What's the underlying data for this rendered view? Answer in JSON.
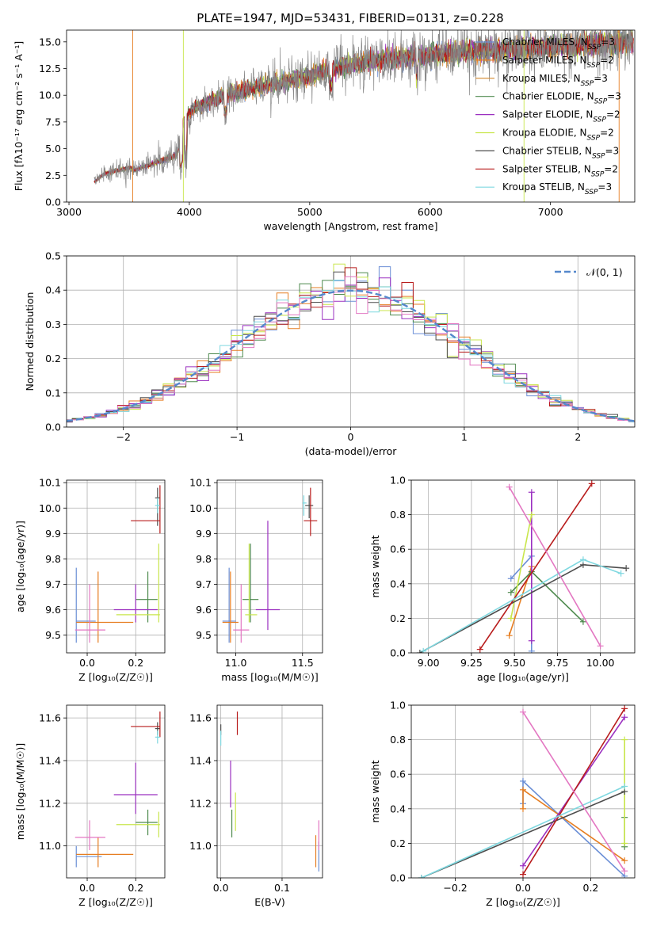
{
  "figure": {
    "title": "PLATE=1947, MJD=53431, FIBERID=0131, z=0.228"
  },
  "colors": {
    "Chabrier MILES": "#6b8fd6",
    "Salpeter MILES": "#e67e22",
    "Kroupa MILES": "#d4882c",
    "Chabrier ELODIE": "#4e8a4e",
    "Salpeter ELODIE": "#9b30c0",
    "Kroupa ELODIE": "#c8e64b",
    "Chabrier STELIB": "#4d4d4d",
    "Salpeter STELIB": "#b81c1c",
    "Kroupa STELIB": "#7fd8e0",
    "pink": "#e377c2",
    "normal": "#5588cc"
  },
  "chart_data": [
    {
      "id": "spectrum",
      "type": "line",
      "title": "PLATE=1947, MJD=53431, FIBERID=0131, z=0.228",
      "xlabel": "wavelength [Angstrom, rest frame]",
      "ylabel": "Flux [f$_\\lambda$10$^{-17}$ erg cm$^{-2}$ s$^{-1}$ A$^{-1}$]",
      "ylabel_display": "Flux [fλ10⁻¹⁷ erg cm⁻² s⁻¹ A⁻¹]",
      "xlim": [
        2980,
        7700
      ],
      "ylim": [
        0,
        16.1
      ],
      "xticks": [
        3000,
        4000,
        5000,
        6000,
        7000
      ],
      "yticks": [
        0.0,
        2.5,
        5.0,
        7.5,
        10.0,
        12.5,
        15.0
      ],
      "ytick_labels": [
        "0.0",
        "2.5",
        "5.0",
        "7.5",
        "10.0",
        "12.5",
        "15.0"
      ],
      "grid": false,
      "legend_position": "top-right",
      "spectrum_start": 3210,
      "continuum_knots": {
        "x": [
          3210,
          3300,
          3500,
          3550,
          3900,
          3950,
          4050,
          4300,
          4500,
          4700,
          5000,
          5300,
          5700,
          6000,
          6500,
          7000,
          7400,
          7550
        ],
        "y": [
          1.9,
          2.7,
          3.2,
          3.0,
          4.4,
          7.6,
          8.9,
          10.0,
          10.6,
          11.0,
          11.8,
          12.8,
          13.5,
          13.8,
          14.2,
          14.5,
          14.8,
          14.9
        ]
      },
      "series": [
        {
          "name": "Chabrier MILES",
          "label": "Chabrier MILES, N",
          "sub": "SSP",
          "suffix": "=3",
          "color": "#6b8fd6"
        },
        {
          "name": "Salpeter MILES",
          "label": "Salpeter MILES, N",
          "sub": "SSP",
          "suffix": "=2",
          "color": "#e67e22"
        },
        {
          "name": "Kroupa MILES",
          "label": "Kroupa MILES, N",
          "sub": "SSP",
          "suffix": "=3",
          "color": "#d4882c"
        },
        {
          "name": "Chabrier ELODIE",
          "label": "Chabrier ELODIE, N",
          "sub": "SSP",
          "suffix": "=3",
          "color": "#4e8a4e"
        },
        {
          "name": "Salpeter ELODIE",
          "label": "Salpeter ELODIE, N",
          "sub": "SSP",
          "suffix": "=2",
          "color": "#9b30c0"
        },
        {
          "name": "Kroupa ELODIE",
          "label": "Kroupa ELODIE, N",
          "sub": "SSP",
          "suffix": "=2",
          "color": "#c8e64b"
        },
        {
          "name": "Chabrier STELIB",
          "label": "Chabrier STELIB, N",
          "sub": "SSP",
          "suffix": "=3",
          "color": "#4d4d4d"
        },
        {
          "name": "Salpeter STELIB",
          "label": "Salpeter STELIB, N",
          "sub": "SSP",
          "suffix": "=2",
          "color": "#b81c1c"
        },
        {
          "name": "Kroupa STELIB",
          "label": "Kroupa STELIB, N",
          "sub": "SSP",
          "suffix": "=3",
          "color": "#7fd8e0"
        }
      ]
    },
    {
      "id": "residuals",
      "type": "line",
      "xlabel": "(data-model)/error",
      "ylabel": "Normed distribution",
      "xlim": [
        -2.5,
        2.5
      ],
      "ylim": [
        0,
        0.5
      ],
      "xticks": [
        -2,
        -1,
        0,
        1,
        2
      ],
      "xtick_labels": [
        "−2",
        "−1",
        "0",
        "1",
        "2"
      ],
      "yticks": [
        0.0,
        0.1,
        0.2,
        0.3,
        0.4,
        0.5
      ],
      "ytick_labels": [
        "0.0",
        "0.1",
        "0.2",
        "0.3",
        "0.4",
        "0.5"
      ],
      "grid": true,
      "legend_position": "top-right",
      "legend_label": "𝒩(0, 1)",
      "reference_curve": "standard normal, dashed",
      "bin_width": 0.1,
      "histogram_colors": [
        "#6b8fd6",
        "#e67e22",
        "#4e8a4e",
        "#9b30c0",
        "#c8e64b",
        "#4d4d4d",
        "#b81c1c",
        "#7fd8e0",
        "#e377c2"
      ]
    },
    {
      "id": "age_vs_Z",
      "type": "scatter",
      "xlabel": "Z [log₁₀(Z/Z☉)]",
      "ylabel": "age  [log₁₀(age/yr)]",
      "xlim": [
        -0.085,
        0.32
      ],
      "ylim": [
        9.43,
        10.11
      ],
      "xticks": [
        0.0,
        0.2
      ],
      "xtick_labels": [
        "0.0",
        "0.2"
      ],
      "yticks": [
        9.5,
        9.6,
        9.7,
        9.8,
        9.9,
        10.0,
        10.1
      ],
      "ytick_labels": [
        "9.5",
        "9.6",
        "9.7",
        "9.8",
        "9.9",
        "10.0",
        "10.1"
      ],
      "grid": true,
      "errorbars": [
        {
          "x": -0.045,
          "x_lo": -0.045,
          "x_hi": 0.035,
          "y": 9.555,
          "y_lo": 9.47,
          "y_hi": 9.765,
          "color": "#6b8fd6"
        },
        {
          "x": 0.045,
          "x_lo": -0.045,
          "x_hi": 0.19,
          "y": 9.55,
          "y_lo": 9.47,
          "y_hi": 9.75,
          "color": "#e67e22"
        },
        {
          "x": 0.01,
          "x_lo": -0.05,
          "x_hi": 0.075,
          "y": 9.52,
          "y_lo": 9.47,
          "y_hi": 9.7,
          "color": "#e377c2"
        },
        {
          "x": 0.25,
          "x_lo": 0.2,
          "x_hi": 0.29,
          "y": 9.64,
          "y_lo": 9.55,
          "y_hi": 9.75,
          "color": "#4e8a4e"
        },
        {
          "x": 0.2,
          "x_lo": 0.11,
          "x_hi": 0.29,
          "y": 9.6,
          "y_lo": 9.55,
          "y_hi": 9.7,
          "color": "#9b30c0"
        },
        {
          "x": 0.295,
          "x_lo": 0.12,
          "x_hi": 0.3,
          "y": 9.58,
          "y_lo": 9.55,
          "y_hi": 9.86,
          "color": "#c8e64b"
        },
        {
          "x": 0.29,
          "x_lo": 0.28,
          "x_hi": 0.3,
          "y": 10.04,
          "y_lo": 9.93,
          "y_hi": 10.08,
          "color": "#4d4d4d"
        },
        {
          "x": 0.3,
          "x_lo": 0.18,
          "x_hi": 0.3,
          "y": 9.95,
          "y_lo": 9.9,
          "y_hi": 10.09,
          "color": "#b81c1c"
        },
        {
          "x": 0.29,
          "x_lo": 0.28,
          "x_hi": 0.3,
          "y": 10.01,
          "y_lo": 9.98,
          "y_hi": 10.04,
          "color": "#7fd8e0"
        }
      ]
    },
    {
      "id": "age_vs_mass",
      "type": "scatter",
      "xlabel": "mass [log₁₀(M/M☉)]",
      "ylabel": "",
      "xlim": [
        10.86,
        11.65
      ],
      "ylim": [
        9.43,
        10.11
      ],
      "xticks": [
        11.0,
        11.5
      ],
      "xtick_labels": [
        "11.0",
        "11.5"
      ],
      "yticks": [
        9.5,
        9.6,
        9.7,
        9.8,
        9.9,
        10.0,
        10.1
      ],
      "ytick_labels": [
        "9.5",
        "9.6",
        "9.7",
        "9.8",
        "9.9",
        "10.0",
        "10.1"
      ],
      "grid": true,
      "errorbars": [
        {
          "x": 10.95,
          "x_lo": 10.9,
          "x_hi": 11.0,
          "y": 9.555,
          "y_lo": 9.47,
          "y_hi": 9.765,
          "color": "#6b8fd6"
        },
        {
          "x": 10.96,
          "x_lo": 10.9,
          "x_hi": 11.02,
          "y": 9.55,
          "y_lo": 9.47,
          "y_hi": 9.75,
          "color": "#e67e22"
        },
        {
          "x": 11.04,
          "x_lo": 10.98,
          "x_hi": 11.1,
          "y": 9.52,
          "y_lo": 9.47,
          "y_hi": 9.7,
          "color": "#e377c2"
        },
        {
          "x": 11.11,
          "x_lo": 11.05,
          "x_hi": 11.17,
          "y": 9.64,
          "y_lo": 9.55,
          "y_hi": 9.86,
          "color": "#4e8a4e"
        },
        {
          "x": 11.24,
          "x_lo": 11.15,
          "x_hi": 11.33,
          "y": 9.6,
          "y_lo": 9.52,
          "y_hi": 9.95,
          "color": "#9b30c0"
        },
        {
          "x": 11.1,
          "x_lo": 11.07,
          "x_hi": 11.16,
          "y": 9.58,
          "y_lo": 9.55,
          "y_hi": 9.86,
          "color": "#c8e64b"
        },
        {
          "x": 11.55,
          "x_lo": 11.52,
          "x_hi": 11.58,
          "y": 10.01,
          "y_lo": 9.96,
          "y_hi": 10.05,
          "color": "#4d4d4d"
        },
        {
          "x": 11.56,
          "x_lo": 11.51,
          "x_hi": 11.61,
          "y": 9.95,
          "y_lo": 9.89,
          "y_hi": 10.08,
          "color": "#b81c1c"
        },
        {
          "x": 11.51,
          "x_lo": 11.5,
          "x_hi": 11.53,
          "y": 10.02,
          "y_lo": 9.97,
          "y_hi": 10.05,
          "color": "#7fd8e0"
        }
      ]
    },
    {
      "id": "weight_vs_age",
      "type": "line",
      "xlabel": "age  [log₁₀(age/yr)]",
      "ylabel": "mass weight",
      "xlim": [
        8.9,
        10.2
      ],
      "ylim": [
        0,
        1.0
      ],
      "xticks": [
        9.0,
        9.25,
        9.5,
        9.75,
        10.0
      ],
      "xtick_labels": [
        "9.00",
        "9.25",
        "9.50",
        "9.75",
        "10.00"
      ],
      "yticks": [
        0.0,
        0.2,
        0.4,
        0.6,
        0.8,
        1.0
      ],
      "ytick_labels": [
        "0.0",
        "0.2",
        "0.4",
        "0.6",
        "0.8",
        "1.0"
      ],
      "grid": true,
      "series": [
        {
          "color": "#6b8fd6",
          "x": [
            9.48,
            9.6,
            9.6
          ],
          "y": [
            0.43,
            0.56,
            0.01
          ]
        },
        {
          "color": "#e67e22",
          "x": [
            9.47,
            9.6
          ],
          "y": [
            0.1,
            0.5
          ]
        },
        {
          "color": "#4e8a4e",
          "x": [
            9.48,
            9.6,
            9.9
          ],
          "y": [
            0.35,
            0.47,
            0.18
          ]
        },
        {
          "color": "#9b30c0",
          "x": [
            9.6,
            9.6
          ],
          "y": [
            0.93,
            0.07
          ]
        },
        {
          "color": "#c8e64b",
          "x": [
            9.48,
            9.6
          ],
          "y": [
            0.2,
            0.8
          ]
        },
        {
          "color": "#4d4d4d",
          "x": [
            8.95,
            9.9,
            10.15
          ],
          "y": [
            0.0,
            0.51,
            0.49
          ]
        },
        {
          "color": "#b81c1c",
          "x": [
            9.3,
            9.95
          ],
          "y": [
            0.02,
            0.98
          ]
        },
        {
          "color": "#7fd8e0",
          "x": [
            8.97,
            9.9,
            10.12
          ],
          "y": [
            0.01,
            0.54,
            0.46
          ]
        },
        {
          "color": "#e377c2",
          "x": [
            9.47,
            10.0
          ],
          "y": [
            0.96,
            0.04
          ]
        }
      ]
    },
    {
      "id": "mass_vs_Z",
      "type": "scatter",
      "xlabel": "Z [log₁₀(Z/Z☉)]",
      "ylabel": "mass [log₁₀(M/M☉)]",
      "xlim": [
        -0.085,
        0.32
      ],
      "ylim": [
        10.85,
        11.66
      ],
      "xticks": [
        0.0,
        0.2
      ],
      "xtick_labels": [
        "0.0",
        "0.2"
      ],
      "yticks": [
        11.0,
        11.2,
        11.4,
        11.6
      ],
      "ytick_labels": [
        "11.0",
        "11.2",
        "11.4",
        "11.6"
      ],
      "grid": true,
      "errorbars": [
        {
          "x": -0.045,
          "x_lo": -0.045,
          "x_hi": 0.06,
          "y": 10.95,
          "y_lo": 10.9,
          "y_hi": 11.0,
          "color": "#6b8fd6"
        },
        {
          "x": 0.045,
          "x_lo": -0.045,
          "x_hi": 0.19,
          "y": 10.96,
          "y_lo": 10.9,
          "y_hi": 11.04,
          "color": "#e67e22"
        },
        {
          "x": 0.01,
          "x_lo": -0.05,
          "x_hi": 0.075,
          "y": 11.04,
          "y_lo": 10.98,
          "y_hi": 11.12,
          "color": "#e377c2"
        },
        {
          "x": 0.25,
          "x_lo": 0.2,
          "x_hi": 0.29,
          "y": 11.11,
          "y_lo": 11.05,
          "y_hi": 11.17,
          "color": "#4e8a4e"
        },
        {
          "x": 0.2,
          "x_lo": 0.11,
          "x_hi": 0.29,
          "y": 11.24,
          "y_lo": 11.15,
          "y_hi": 11.39,
          "color": "#9b30c0"
        },
        {
          "x": 0.295,
          "x_lo": 0.12,
          "x_hi": 0.3,
          "y": 11.1,
          "y_lo": 11.04,
          "y_hi": 11.16,
          "color": "#c8e64b"
        },
        {
          "x": 0.29,
          "x_lo": 0.28,
          "x_hi": 0.3,
          "y": 11.55,
          "y_lo": 11.52,
          "y_hi": 11.58,
          "color": "#4d4d4d"
        },
        {
          "x": 0.3,
          "x_lo": 0.18,
          "x_hi": 0.3,
          "y": 11.56,
          "y_lo": 11.51,
          "y_hi": 11.63,
          "color": "#b81c1c"
        },
        {
          "x": 0.29,
          "x_lo": 0.28,
          "x_hi": 0.3,
          "y": 11.51,
          "y_lo": 11.48,
          "y_hi": 11.54,
          "color": "#7fd8e0"
        }
      ]
    },
    {
      "id": "mass_vs_ebv",
      "type": "scatter",
      "xlabel": "E(B-V)",
      "ylabel": "",
      "xlim": [
        -0.006,
        0.166
      ],
      "ylim": [
        10.85,
        11.66
      ],
      "xticks": [
        0.0,
        0.1
      ],
      "xtick_labels": [
        "0.0",
        "0.1"
      ],
      "yticks": [
        11.0,
        11.2,
        11.4,
        11.6
      ],
      "ytick_labels": [
        "11.0",
        "11.2",
        "11.4",
        "11.6"
      ],
      "grid": true,
      "errorbars": [
        {
          "x": 0.16,
          "y": 10.95,
          "y_lo": 10.88,
          "y_hi": 11.02,
          "color": "#6b8fd6"
        },
        {
          "x": 0.155,
          "y": 10.96,
          "y_lo": 10.9,
          "y_hi": 11.05,
          "color": "#e67e22"
        },
        {
          "x": 0.16,
          "y": 11.04,
          "y_lo": 10.98,
          "y_hi": 11.12,
          "color": "#e377c2"
        },
        {
          "x": 0.018,
          "y": 11.11,
          "y_lo": 11.04,
          "y_hi": 11.17,
          "color": "#4e8a4e"
        },
        {
          "x": 0.016,
          "y": 11.24,
          "y_lo": 11.18,
          "y_hi": 11.4,
          "color": "#9b30c0"
        },
        {
          "x": 0.024,
          "y": 11.15,
          "y_lo": 11.07,
          "y_hi": 11.25,
          "color": "#c8e64b"
        },
        {
          "x": 0.0,
          "y": 11.55,
          "y_lo": 11.52,
          "y_hi": 11.57,
          "color": "#4d4d4d"
        },
        {
          "x": 0.027,
          "y": 11.56,
          "y_lo": 11.52,
          "y_hi": 11.63,
          "color": "#b81c1c"
        },
        {
          "x": 0.0,
          "y": 11.51,
          "y_lo": 11.47,
          "y_hi": 11.54,
          "color": "#7fd8e0"
        }
      ]
    },
    {
      "id": "weight_vs_Z",
      "type": "line",
      "xlabel": "Z [log₁₀(Z/Z☉)]",
      "ylabel": "mass weight",
      "xlim": [
        -0.33,
        0.33
      ],
      "ylim": [
        0,
        1.0
      ],
      "xticks": [
        -0.2,
        0.0,
        0.2
      ],
      "xtick_labels": [
        "−0.2",
        "0.0",
        "0.2"
      ],
      "yticks": [
        0.0,
        0.2,
        0.4,
        0.6,
        0.8,
        1.0
      ],
      "ytick_labels": [
        "0.0",
        "0.2",
        "0.4",
        "0.6",
        "0.8",
        "1.0"
      ],
      "grid": true,
      "series": [
        {
          "color": "#6b8fd6",
          "x": [
            0.0,
            0.0,
            0.3
          ],
          "y": [
            0.43,
            0.56,
            0.01
          ]
        },
        {
          "color": "#e67e22",
          "x": [
            0.0,
            0.0,
            0.3
          ],
          "y": [
            0.4,
            0.51,
            0.1
          ]
        },
        {
          "color": "#4e8a4e",
          "x": [
            0.3,
            0.3
          ],
          "y": [
            0.35,
            0.18
          ]
        },
        {
          "color": "#9b30c0",
          "x": [
            0.0,
            0.3
          ],
          "y": [
            0.07,
            0.93
          ]
        },
        {
          "color": "#c8e64b",
          "x": [
            0.3,
            0.3
          ],
          "y": [
            0.8,
            0.2
          ]
        },
        {
          "color": "#4d4d4d",
          "x": [
            -0.3,
            0.3
          ],
          "y": [
            0.0,
            0.5
          ]
        },
        {
          "color": "#b81c1c",
          "x": [
            0.0,
            0.3
          ],
          "y": [
            0.02,
            0.98
          ]
        },
        {
          "color": "#7fd8e0",
          "x": [
            -0.3,
            0.3
          ],
          "y": [
            0.0,
            0.53
          ]
        },
        {
          "color": "#e377c2",
          "x": [
            0.0,
            0.3
          ],
          "y": [
            0.96,
            0.04
          ]
        }
      ]
    }
  ]
}
